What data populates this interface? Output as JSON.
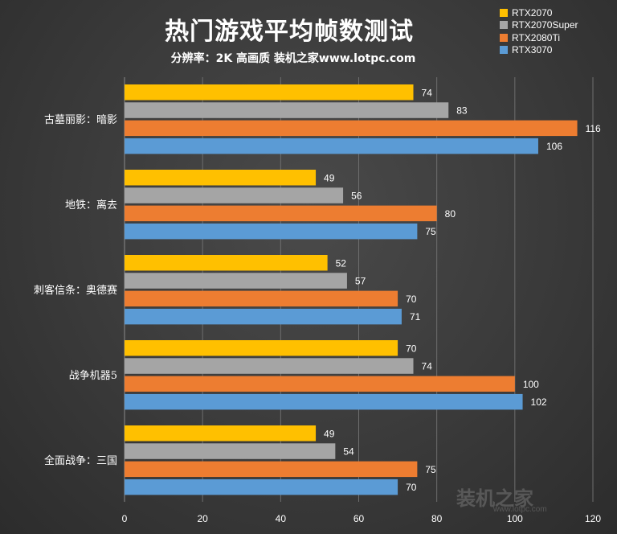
{
  "title": "热门游戏平均帧数测试",
  "subtitle": "分辨率：2K 高画质 装机之家www.lotpc.com",
  "watermark": {
    "text": "装机之家",
    "url": "www.lotpc.com"
  },
  "colors": {
    "RTX2070": "#ffc000",
    "RTX2070Super": "#a5a5a5",
    "RTX2080Ti": "#ed7d31",
    "RTX3070": "#5b9bd5"
  },
  "chart_data": {
    "type": "bar",
    "orientation": "horizontal",
    "title": "热门游戏平均帧数测试",
    "subtitle": "分辨率：2K 高画质 装机之家www.lotpc.com",
    "categories": [
      "古墓丽影：暗影",
      "地铁：离去",
      "刺客信条：奥德赛",
      "战争机器5",
      "全面战争：三国"
    ],
    "series": [
      {
        "name": "RTX2070",
        "color": "#ffc000",
        "values": [
          74,
          49,
          52,
          70,
          49
        ]
      },
      {
        "name": "RTX2070Super",
        "color": "#a5a5a5",
        "values": [
          83,
          56,
          57,
          74,
          54
        ]
      },
      {
        "name": "RTX2080Ti",
        "color": "#ed7d31",
        "values": [
          116,
          80,
          70,
          100,
          75
        ]
      },
      {
        "name": "RTX3070",
        "color": "#5b9bd5",
        "values": [
          106,
          75,
          71,
          102,
          70
        ]
      }
    ],
    "xlim": [
      0,
      120
    ],
    "xticks": [
      0,
      20,
      40,
      60,
      80,
      100,
      120
    ],
    "grid": true,
    "legend": "top-right",
    "data_labels": true
  }
}
